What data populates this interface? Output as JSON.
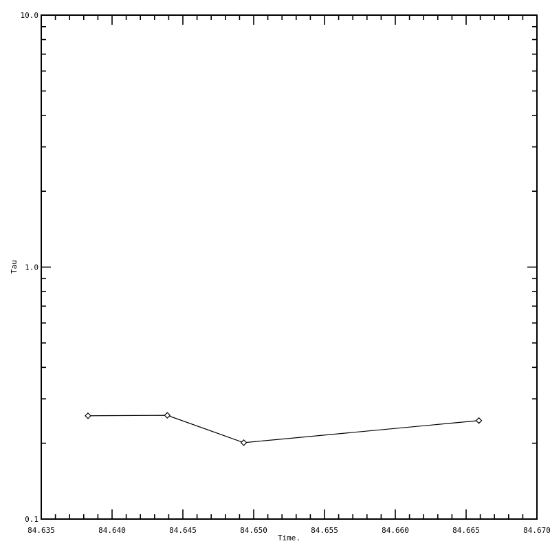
{
  "page": {
    "background_color": "#ffffff",
    "foreground_color": "#000000"
  },
  "chart_data": {
    "type": "line",
    "title": "",
    "xlabel": "Time.",
    "ylabel": "Tau",
    "x": [
      84.6383,
      84.6439,
      84.6493,
      84.6659
    ],
    "y": [
      0.257,
      0.258,
      0.201,
      0.246
    ],
    "xlim": [
      84.635,
      84.67
    ],
    "ylim": [
      0.1,
      10.0
    ],
    "yscale": "log",
    "xscale": "linear",
    "grid": false,
    "legend": null,
    "marker": "open-diamond",
    "line_color": "#000000",
    "xticks": {
      "values": [
        84.635,
        84.64,
        84.645,
        84.65,
        84.655,
        84.66,
        84.665,
        84.67
      ],
      "labels": [
        "84.635",
        "84.640",
        "84.645",
        "84.650",
        "84.655",
        "84.660",
        "84.665",
        "84.670"
      ],
      "minor_interval": 0.001
    },
    "yticks": {
      "values": [
        10.0,
        1.0,
        0.1
      ],
      "labels": [
        "10.0",
        "1.0",
        "0.1"
      ],
      "minor": "log-decades (2-9 per decade)"
    }
  }
}
